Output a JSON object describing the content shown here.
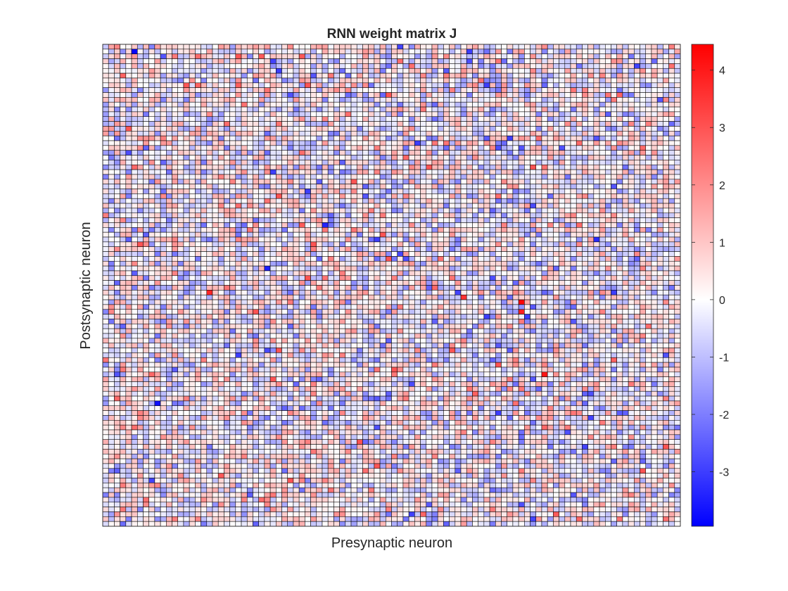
{
  "chart_data": {
    "type": "heatmap",
    "title": "RNN weight matrix J",
    "xlabel": "Presynaptic neuron",
    "ylabel": "Postsynaptic neuron",
    "grid": true,
    "x_tick_labels": [],
    "y_tick_labels": [],
    "matrix_size": [
      100,
      100
    ],
    "matrix_values": "pseudo-random weights, approximately normal around 0 with SD 1; exact per-cell values not readable at this resolution",
    "color_range": [
      -3.95,
      4.45
    ],
    "colormap": "blue-white-red diverging",
    "colors": {
      "min": "#0000ff",
      "zero": "#ffffff",
      "max": "#ff0000"
    },
    "colorbar": {
      "position": "right",
      "ticks": [
        4,
        3,
        2,
        1,
        0,
        -1,
        -2,
        -3
      ],
      "tick_labels": [
        "4",
        "3",
        "2",
        "1",
        "0",
        "-1",
        "-2",
        "-3"
      ]
    },
    "notable_values": [
      {
        "row": 53,
        "col": 72,
        "value": 4.4
      },
      {
        "row": 55,
        "col": 72,
        "value": 3.9
      },
      {
        "row": 68,
        "col": 76,
        "value": 4.1
      },
      {
        "row": 51,
        "col": 18,
        "value": 3.8
      },
      {
        "row": 52,
        "col": 62,
        "value": 3.6
      },
      {
        "row": 1,
        "col": 5,
        "value": -3.9
      },
      {
        "row": 74,
        "col": 9,
        "value": -3.7
      },
      {
        "row": 46,
        "col": 28,
        "value": -3.5
      },
      {
        "row": 37,
        "col": 38,
        "value": -3.4
      },
      {
        "row": 40,
        "col": 85,
        "value": -3.3
      }
    ]
  }
}
